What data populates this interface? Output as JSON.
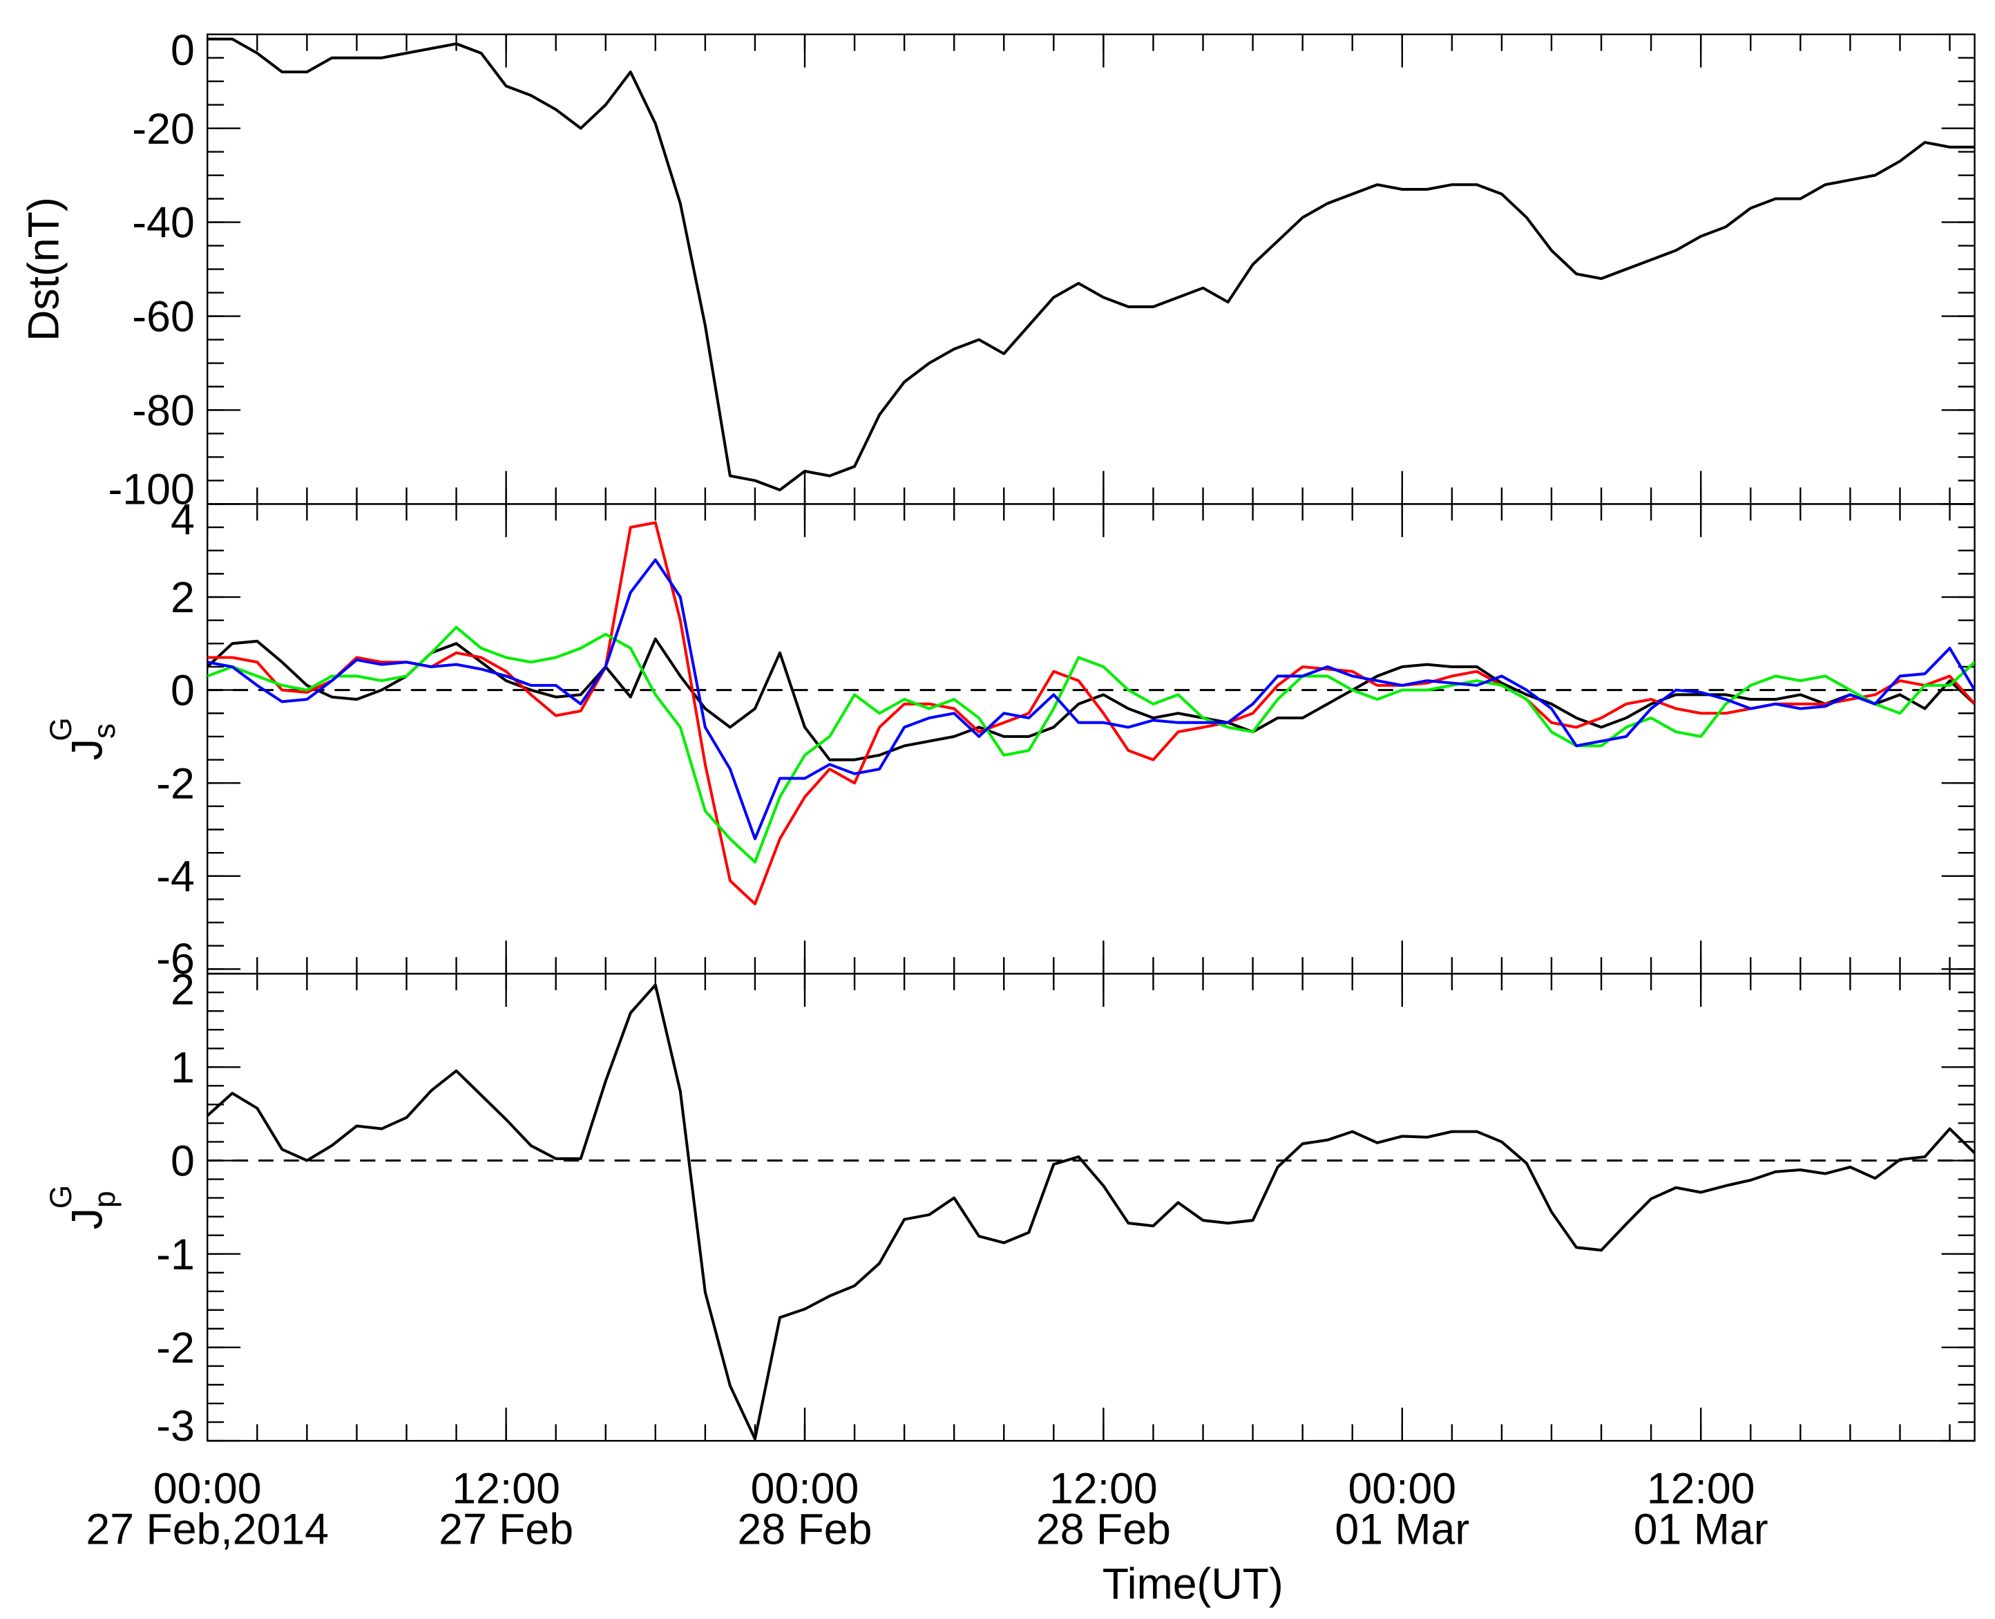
{
  "chart_data": [
    {
      "type": "line",
      "ylabel": "Dst(nT)",
      "ylim": [
        -100,
        0
      ],
      "yticks": [
        0,
        -20,
        -40,
        -60,
        -80,
        -100
      ],
      "yminor_step": 5,
      "xlim": [
        0,
        71
      ],
      "xminor_step": 2,
      "x": [
        0,
        1,
        2,
        3,
        4,
        5,
        6,
        7,
        8,
        9,
        10,
        11,
        12,
        13,
        14,
        15,
        16,
        17,
        18,
        19,
        20,
        21,
        22,
        23,
        24,
        25,
        26,
        27,
        28,
        29,
        30,
        31,
        32,
        33,
        34,
        35,
        36,
        37,
        38,
        39,
        40,
        41,
        42,
        43,
        44,
        45,
        46,
        47,
        48,
        49,
        50,
        51,
        52,
        53,
        54,
        55,
        56,
        57,
        58,
        59,
        60,
        61,
        62,
        63,
        64,
        65,
        66,
        67,
        68,
        69,
        70,
        71
      ],
      "series": [
        {
          "color": "#000000",
          "values": [
            -1,
            -1,
            -4,
            -8,
            -8,
            -5,
            -5,
            -5,
            -4,
            -3,
            -2,
            -4,
            -11,
            -13,
            -16,
            -20,
            -15,
            -8,
            -19,
            -36,
            -62,
            -94,
            -95,
            -97,
            -93,
            -94,
            -92,
            -81,
            -74,
            -70,
            -67,
            -65,
            -68,
            -62,
            -56,
            -53,
            -56,
            -58,
            -58,
            -56,
            -54,
            -57,
            -49,
            -44,
            -39,
            -36,
            -34,
            -32,
            -33,
            -33,
            -32,
            -32,
            -34,
            -39,
            -46,
            -51,
            -52,
            -50,
            -48,
            -46,
            -43,
            -41,
            -37,
            -35,
            -35,
            -32,
            -31,
            -30,
            -27,
            -23,
            -24,
            -24
          ]
        }
      ]
    },
    {
      "type": "line",
      "ylabel": "J",
      "ylabel_sub": "s",
      "ylabel_sup": "G",
      "ylim": [
        -6.1,
        4
      ],
      "yticks": [
        4,
        2,
        0,
        -2,
        -4,
        -6
      ],
      "yminor_step": 0.5,
      "zero_line": true,
      "xlim": [
        0,
        71
      ],
      "xminor_step": 2,
      "x": [
        0,
        1,
        2,
        3,
        4,
        5,
        6,
        7,
        8,
        9,
        10,
        11,
        12,
        13,
        14,
        15,
        16,
        17,
        18,
        19,
        20,
        21,
        22,
        23,
        24,
        25,
        26,
        27,
        28,
        29,
        30,
        31,
        32,
        33,
        34,
        35,
        36,
        37,
        38,
        39,
        40,
        41,
        42,
        43,
        44,
        45,
        46,
        47,
        48,
        49,
        50,
        51,
        52,
        53,
        54,
        55,
        56,
        57,
        58,
        59,
        60,
        61,
        62,
        63,
        64,
        65,
        66,
        67,
        68,
        69,
        70,
        71
      ],
      "series": [
        {
          "color": "#000000",
          "values": [
            0.5,
            1.0,
            1.05,
            0.6,
            0.1,
            -0.15,
            -0.2,
            0,
            0.3,
            0.8,
            1.0,
            0.6,
            0.2,
            0,
            -0.15,
            -0.1,
            0.5,
            -0.15,
            1.1,
            0.3,
            -0.4,
            -0.8,
            -0.4,
            0.8,
            -0.8,
            -1.5,
            -1.5,
            -1.4,
            -1.2,
            -1.1,
            -1.0,
            -0.8,
            -1.0,
            -1.0,
            -0.8,
            -0.3,
            -0.1,
            -0.4,
            -0.6,
            -0.5,
            -0.6,
            -0.7,
            -0.9,
            -0.6,
            -0.6,
            -0.3,
            0.0,
            0.3,
            0.5,
            0.55,
            0.5,
            0.5,
            0.15,
            -0.1,
            -0.3,
            -0.6,
            -0.8,
            -0.6,
            -0.3,
            -0.1,
            -0.1,
            -0.1,
            -0.2,
            -0.2,
            -0.1,
            -0.3,
            -0.1,
            -0.3,
            -0.1,
            -0.4,
            0.2,
            -0.3
          ]
        },
        {
          "color": "#ff0000",
          "values": [
            0.7,
            0.7,
            0.6,
            0.0,
            -0.05,
            0.2,
            0.7,
            0.6,
            0.6,
            0.5,
            0.8,
            0.7,
            0.4,
            -0.1,
            -0.55,
            -0.45,
            0.5,
            3.5,
            3.6,
            1.5,
            -1.6,
            -4.1,
            -4.6,
            -3.2,
            -2.3,
            -1.7,
            -2.0,
            -0.8,
            -0.3,
            -0.3,
            -0.4,
            -0.9,
            -0.7,
            -0.5,
            0.4,
            0.2,
            -0.5,
            -1.3,
            -1.5,
            -0.9,
            -0.8,
            -0.7,
            -0.5,
            0.1,
            0.5,
            0.45,
            0.4,
            0.1,
            0.1,
            0.15,
            0.3,
            0.4,
            0.1,
            -0.2,
            -0.7,
            -0.8,
            -0.6,
            -0.3,
            -0.2,
            -0.4,
            -0.5,
            -0.5,
            -0.4,
            -0.3,
            -0.3,
            -0.3,
            -0.2,
            -0.1,
            0.2,
            0.1,
            0.3,
            -0.3
          ]
        },
        {
          "color": "#00ee00",
          "values": [
            0.3,
            0.5,
            0.3,
            0.1,
            0.0,
            0.3,
            0.3,
            0.2,
            0.3,
            0.8,
            1.35,
            0.9,
            0.7,
            0.6,
            0.7,
            0.9,
            1.2,
            0.9,
            -0.1,
            -0.8,
            -2.6,
            -3.2,
            -3.7,
            -2.3,
            -1.4,
            -1.0,
            -0.1,
            -0.5,
            -0.2,
            -0.4,
            -0.2,
            -0.6,
            -1.4,
            -1.3,
            -0.4,
            0.7,
            0.5,
            0.0,
            -0.3,
            -0.1,
            -0.6,
            -0.8,
            -0.9,
            -0.2,
            0.3,
            0.3,
            0.0,
            -0.2,
            0.0,
            0.0,
            0.1,
            0.2,
            0.1,
            -0.2,
            -0.9,
            -1.2,
            -1.2,
            -0.8,
            -0.6,
            -0.9,
            -1.0,
            -0.3,
            0.1,
            0.3,
            0.2,
            0.3,
            0.0,
            -0.3,
            -0.5,
            0.1,
            0.1,
            0.6
          ]
        },
        {
          "color": "#0000ff",
          "values": [
            0.6,
            0.5,
            0.1,
            -0.25,
            -0.2,
            0.2,
            0.65,
            0.55,
            0.6,
            0.5,
            0.55,
            0.45,
            0.3,
            0.1,
            0.1,
            -0.3,
            0.5,
            2.1,
            2.8,
            2.0,
            -0.8,
            -1.7,
            -3.2,
            -1.9,
            -1.9,
            -1.6,
            -1.8,
            -1.7,
            -0.8,
            -0.6,
            -0.5,
            -1.0,
            -0.5,
            -0.6,
            -0.1,
            -0.7,
            -0.7,
            -0.8,
            -0.65,
            -0.7,
            -0.7,
            -0.7,
            -0.3,
            0.3,
            0.3,
            0.5,
            0.3,
            0.2,
            0.1,
            0.2,
            0.15,
            0.1,
            0.3,
            0.0,
            -0.4,
            -1.2,
            -1.1,
            -1.0,
            -0.4,
            0.0,
            -0.05,
            -0.2,
            -0.4,
            -0.3,
            -0.4,
            -0.35,
            -0.1,
            -0.3,
            0.3,
            0.35,
            0.9,
            0.0
          ]
        }
      ]
    },
    {
      "type": "line",
      "ylabel": "J",
      "ylabel_sub": "p",
      "ylabel_sup": "G",
      "ylim": [
        -3,
        2
      ],
      "yticks": [
        2,
        1,
        0,
        -1,
        -2,
        -3
      ],
      "yminor_step": 0.2,
      "zero_line": true,
      "xlim": [
        0,
        71
      ],
      "xminor_step": 2,
      "xticks": [
        {
          "value": 0,
          "label": "00:00"
        },
        {
          "value": 12,
          "label": "12:00"
        },
        {
          "value": 24,
          "label": "00:00"
        },
        {
          "value": 36,
          "label": "12:00"
        },
        {
          "value": 48,
          "label": "00:00"
        },
        {
          "value": 60,
          "label": "12:00"
        }
      ],
      "xtick_dates": [
        "27 Feb,2014",
        "27 Feb",
        "28 Feb",
        "28 Feb",
        "01 Mar",
        "01 Mar"
      ],
      "xlabel": "Time(UT)",
      "x": [
        0,
        1,
        2,
        3,
        4,
        5,
        6,
        7,
        8,
        9,
        10,
        11,
        12,
        13,
        14,
        15,
        16,
        17,
        18,
        19,
        20,
        21,
        22,
        23,
        24,
        25,
        26,
        27,
        28,
        29,
        30,
        31,
        32,
        33,
        34,
        35,
        36,
        37,
        38,
        39,
        40,
        41,
        42,
        43,
        44,
        45,
        46,
        47,
        48,
        49,
        50,
        51,
        52,
        53,
        54,
        55,
        56,
        57,
        58,
        59,
        60,
        61,
        62,
        63,
        64,
        65,
        66,
        67,
        68,
        69,
        70,
        71
      ],
      "series": [
        {
          "color": "#000000",
          "values": [
            0.48,
            0.72,
            0.56,
            0.12,
            0.0,
            0.16,
            0.37,
            0.34,
            0.46,
            0.75,
            0.96,
            0.7,
            0.44,
            0.16,
            0.02,
            0.02,
            0.85,
            1.58,
            1.88,
            0.74,
            -1.41,
            -2.41,
            -2.98,
            -1.68,
            -1.59,
            -1.45,
            -1.34,
            -1.1,
            -0.63,
            -0.58,
            -0.4,
            -0.81,
            -0.88,
            -0.77,
            -0.04,
            0.04,
            -0.27,
            -0.67,
            -0.7,
            -0.45,
            -0.64,
            -0.67,
            -0.64,
            -0.07,
            0.18,
            0.22,
            0.31,
            0.19,
            0.26,
            0.25,
            0.31,
            0.31,
            0.2,
            -0.03,
            -0.55,
            -0.93,
            -0.96,
            -0.68,
            -0.41,
            -0.29,
            -0.34,
            -0.27,
            -0.21,
            -0.12,
            -0.1,
            -0.14,
            -0.07,
            -0.19,
            0.01,
            0.04,
            0.34,
            0.08
          ]
        }
      ]
    }
  ]
}
